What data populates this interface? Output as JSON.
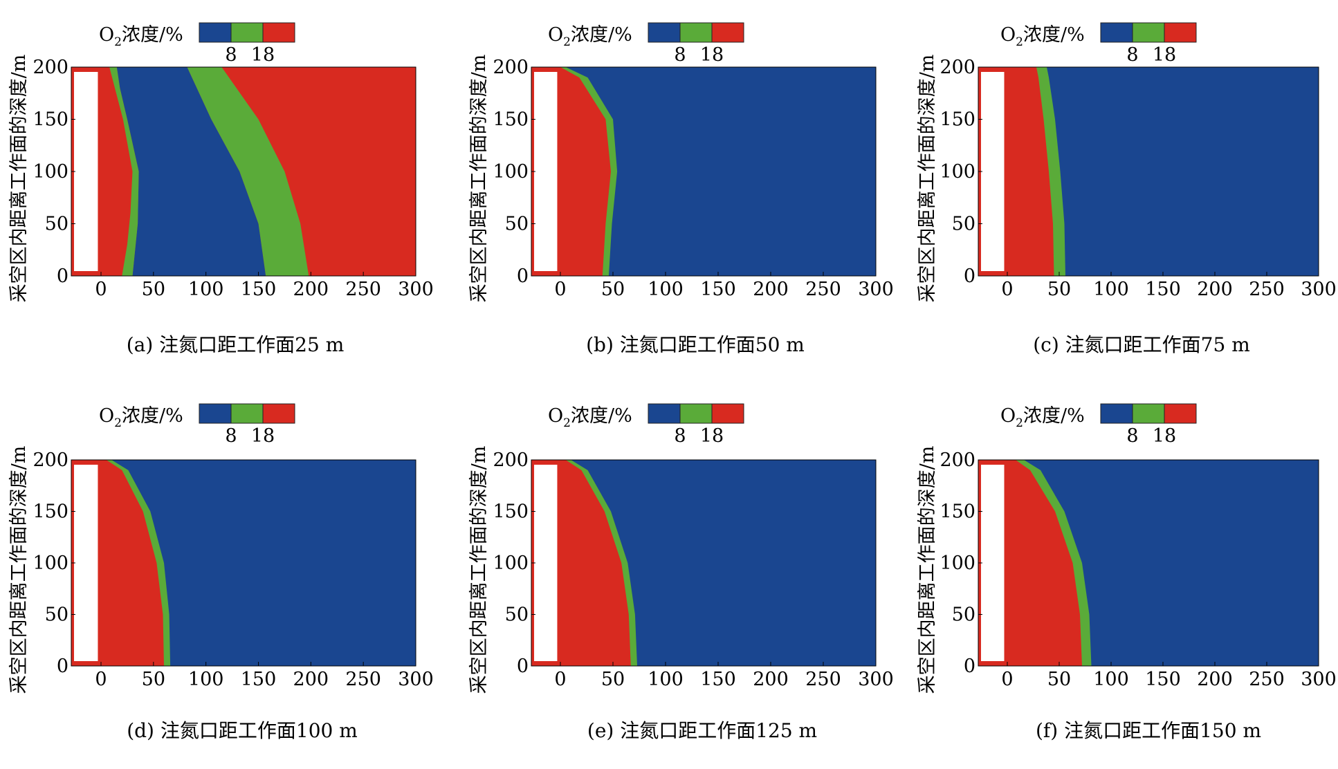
{
  "colors": {
    "low": "#1a4690",
    "mid": "#5aab39",
    "high": "#d82a20",
    "wall": "#ffffff",
    "axis": "#000000"
  },
  "legend": {
    "title_prefix": "O",
    "title_subscript": "2",
    "title_suffix": "浓度/%",
    "tick_low": "8",
    "tick_high": "18"
  },
  "chart_data": [
    {
      "type": "heatmap",
      "caption": "(a) 注氮口距工作面25 m",
      "ylabel": "采空区内距离工作面的深度/m",
      "xlim": [
        -30,
        300
      ],
      "ylim": [
        0,
        200
      ],
      "xticks": [
        0,
        50,
        100,
        150,
        200,
        250,
        300
      ],
      "yticks": [
        0,
        50,
        100,
        150,
        200
      ],
      "levels": [
        8,
        18
      ],
      "inner_contour_8_left": [
        [
          30,
          0
        ],
        [
          35,
          50
        ],
        [
          36,
          100
        ],
        [
          25,
          150
        ],
        [
          18,
          180
        ],
        [
          15,
          200
        ]
      ],
      "inner_contour_8_right": [
        [
          20,
          0
        ],
        [
          25,
          30
        ],
        [
          28,
          60
        ],
        [
          30,
          100
        ],
        [
          21,
          150
        ],
        [
          8,
          200
        ]
      ],
      "outer_contour_18_left": [
        [
          157,
          0
        ],
        [
          150,
          50
        ],
        [
          132,
          100
        ],
        [
          105,
          150
        ],
        [
          82,
          200
        ]
      ],
      "outer_contour_8_right": [
        [
          198,
          0
        ],
        [
          190,
          50
        ],
        [
          175,
          100
        ],
        [
          150,
          150
        ],
        [
          115,
          200
        ]
      ]
    },
    {
      "type": "heatmap",
      "caption": "(b) 注氮口距工作面50 m",
      "ylabel": "采空区内距离工作面的深度/m",
      "xlim": [
        -30,
        300
      ],
      "ylim": [
        0,
        200
      ],
      "xticks": [
        0,
        50,
        100,
        150,
        200,
        250,
        300
      ],
      "yticks": [
        0,
        50,
        100,
        150,
        200
      ],
      "levels": [
        8,
        18
      ],
      "contour_18": [
        [
          40,
          0
        ],
        [
          43,
          50
        ],
        [
          48,
          100
        ],
        [
          43,
          150
        ],
        [
          18,
          190
        ],
        [
          0,
          200
        ]
      ],
      "contour_8": [
        [
          46,
          0
        ],
        [
          49,
          50
        ],
        [
          54,
          100
        ],
        [
          50,
          150
        ],
        [
          26,
          190
        ],
        [
          5,
          200
        ]
      ]
    },
    {
      "type": "heatmap",
      "caption": "(c) 注氮口距工作面75 m",
      "ylabel": "采空区内距离工作面的深度/m",
      "xlim": [
        -30,
        300
      ],
      "ylim": [
        0,
        200
      ],
      "xticks": [
        0,
        50,
        100,
        150,
        200,
        250,
        300
      ],
      "yticks": [
        0,
        50,
        100,
        150,
        200
      ],
      "levels": [
        8,
        18
      ],
      "contour_18": [
        [
          45,
          0
        ],
        [
          44,
          50
        ],
        [
          40,
          100
        ],
        [
          35,
          150
        ],
        [
          30,
          190
        ],
        [
          28,
          200
        ]
      ],
      "contour_8": [
        [
          56,
          0
        ],
        [
          55,
          50
        ],
        [
          51,
          100
        ],
        [
          46,
          150
        ],
        [
          40,
          190
        ],
        [
          38,
          200
        ]
      ]
    },
    {
      "type": "heatmap",
      "caption": "(d) 注氮口距工作面100 m",
      "ylabel": "采空区内距离工作面的深度/m",
      "xlim": [
        -30,
        300
      ],
      "ylim": [
        0,
        200
      ],
      "xticks": [
        0,
        50,
        100,
        150,
        200,
        250,
        300
      ],
      "yticks": [
        0,
        50,
        100,
        150,
        200
      ],
      "levels": [
        8,
        18
      ],
      "contour_18": [
        [
          60,
          0
        ],
        [
          59,
          50
        ],
        [
          53,
          100
        ],
        [
          40,
          150
        ],
        [
          20,
          190
        ],
        [
          5,
          200
        ]
      ],
      "contour_8": [
        [
          66,
          0
        ],
        [
          65,
          50
        ],
        [
          60,
          100
        ],
        [
          47,
          150
        ],
        [
          26,
          190
        ],
        [
          10,
          200
        ]
      ]
    },
    {
      "type": "heatmap",
      "caption": "(e) 注氮口距工作面125 m",
      "ylabel": "采空区内距离工作面的深度/m",
      "xlim": [
        -30,
        300
      ],
      "ylim": [
        0,
        200
      ],
      "xticks": [
        0,
        50,
        100,
        150,
        200,
        250,
        300
      ],
      "yticks": [
        0,
        50,
        100,
        150,
        200
      ],
      "levels": [
        8,
        18
      ],
      "contour_18": [
        [
          67,
          0
        ],
        [
          65,
          50
        ],
        [
          58,
          100
        ],
        [
          42,
          150
        ],
        [
          20,
          190
        ],
        [
          5,
          200
        ]
      ],
      "contour_8": [
        [
          73,
          0
        ],
        [
          71,
          50
        ],
        [
          64,
          100
        ],
        [
          48,
          150
        ],
        [
          26,
          190
        ],
        [
          10,
          200
        ]
      ]
    },
    {
      "type": "heatmap",
      "caption": "(f) 注氮口距工作面150 m",
      "ylabel": "采空区内距离工作面的深度/m",
      "xlim": [
        -30,
        300
      ],
      "ylim": [
        0,
        200
      ],
      "xticks": [
        0,
        50,
        100,
        150,
        200,
        250,
        300
      ],
      "yticks": [
        0,
        50,
        100,
        150,
        200
      ],
      "levels": [
        8,
        18
      ],
      "contour_18": [
        [
          72,
          0
        ],
        [
          70,
          50
        ],
        [
          63,
          100
        ],
        [
          46,
          150
        ],
        [
          22,
          190
        ],
        [
          8,
          200
        ]
      ],
      "contour_8": [
        [
          81,
          0
        ],
        [
          79,
          50
        ],
        [
          72,
          100
        ],
        [
          55,
          150
        ],
        [
          32,
          190
        ],
        [
          16,
          200
        ]
      ]
    }
  ]
}
